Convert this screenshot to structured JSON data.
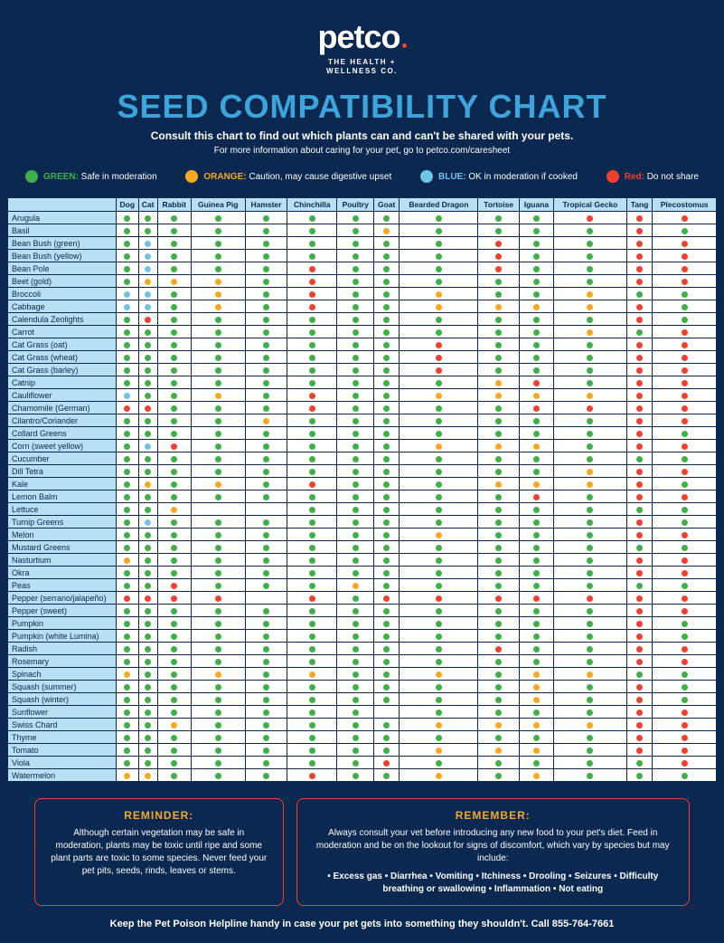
{
  "colors": {
    "g": "#3fb049",
    "o": "#f7a823",
    "b": "#6fc4e8",
    "r": "#ef4130"
  },
  "brand": {
    "name": "petco",
    "tagline1": "THE HEALTH +",
    "tagline2": "WELLNESS CO."
  },
  "header": {
    "title": "SEED COMPATIBILITY CHART",
    "subtitle": "Consult this chart to find out which plants can and can't be shared with your pets.",
    "subtitle2": "For more information about caring for your pet, go to petco.com/caresheet"
  },
  "legend": [
    {
      "key": "g",
      "label": "GREEN:",
      "text": "Safe in moderation"
    },
    {
      "key": "o",
      "label": "ORANGE:",
      "text": "Caution, may cause digestive upset"
    },
    {
      "key": "b",
      "label": "BLUE:",
      "text": "OK in moderation if cooked"
    },
    {
      "key": "r",
      "label": "Red:",
      "text": "Do not share"
    }
  ],
  "columns": [
    "Dog",
    "Cat",
    "Rabbit",
    "Guinea Pig",
    "Hamster",
    "Chinchilla",
    "Poultry",
    "Goat",
    "Bearded Dragon",
    "Tortoise",
    "Iguana",
    "Tropical Gecko",
    "Tang",
    "Plecostomus"
  ],
  "rows": [
    {
      "name": "Arugula",
      "v": [
        "g",
        "g",
        "g",
        "g",
        "g",
        "g",
        "g",
        "g",
        "g",
        "g",
        "g",
        "r",
        "r",
        "r"
      ]
    },
    {
      "name": "Basil",
      "v": [
        "g",
        "g",
        "g",
        "g",
        "g",
        "g",
        "g",
        "o",
        "g",
        "g",
        "g",
        "g",
        "r",
        "g"
      ]
    },
    {
      "name": "Bean Bush (green)",
      "v": [
        "g",
        "b",
        "g",
        "g",
        "g",
        "g",
        "g",
        "g",
        "g",
        "r",
        "g",
        "g",
        "r",
        "r"
      ]
    },
    {
      "name": "Bean Bush (yellow)",
      "v": [
        "g",
        "b",
        "g",
        "g",
        "g",
        "g",
        "g",
        "g",
        "g",
        "r",
        "g",
        "g",
        "r",
        "r"
      ]
    },
    {
      "name": "Bean Pole",
      "v": [
        "g",
        "b",
        "g",
        "g",
        "g",
        "r",
        "g",
        "g",
        "g",
        "r",
        "g",
        "g",
        "r",
        "r"
      ]
    },
    {
      "name": "Beet (gold)",
      "v": [
        "g",
        "o",
        "o",
        "o",
        "g",
        "r",
        "g",
        "g",
        "g",
        "g",
        "g",
        "g",
        "r",
        "r"
      ]
    },
    {
      "name": "Broccoli",
      "v": [
        "b",
        "b",
        "g",
        "o",
        "g",
        "r",
        "g",
        "g",
        "o",
        "g",
        "g",
        "o",
        "g",
        "g"
      ]
    },
    {
      "name": "Cabbage",
      "v": [
        "b",
        "b",
        "g",
        "o",
        "g",
        "r",
        "g",
        "g",
        "o",
        "o",
        "o",
        "o",
        "r",
        "g"
      ]
    },
    {
      "name": "Calendula Zeolights",
      "v": [
        "g",
        "r",
        "g",
        "g",
        "g",
        "g",
        "g",
        "g",
        "g",
        "g",
        "g",
        "g",
        "r",
        "g"
      ]
    },
    {
      "name": "Carrot",
      "v": [
        "g",
        "g",
        "g",
        "g",
        "g",
        "g",
        "g",
        "g",
        "g",
        "g",
        "g",
        "o",
        "g",
        "r"
      ]
    },
    {
      "name": "Cat Grass (oat)",
      "v": [
        "g",
        "g",
        "g",
        "g",
        "g",
        "g",
        "g",
        "g",
        "r",
        "g",
        "g",
        "g",
        "r",
        "r"
      ]
    },
    {
      "name": "Cat Grass (wheat)",
      "v": [
        "g",
        "g",
        "g",
        "g",
        "g",
        "g",
        "g",
        "g",
        "r",
        "g",
        "g",
        "g",
        "r",
        "r"
      ]
    },
    {
      "name": "Cat Grass (barley)",
      "v": [
        "g",
        "g",
        "g",
        "g",
        "g",
        "g",
        "g",
        "g",
        "r",
        "g",
        "g",
        "g",
        "r",
        "r"
      ]
    },
    {
      "name": "Catnip",
      "v": [
        "g",
        "g",
        "g",
        "g",
        "g",
        "g",
        "g",
        "g",
        "g",
        "o",
        "r",
        "g",
        "r",
        "r"
      ]
    },
    {
      "name": "Cauliflower",
      "v": [
        "b",
        "g",
        "g",
        "o",
        "g",
        "r",
        "g",
        "g",
        "o",
        "o",
        "o",
        "o",
        "r",
        "r"
      ]
    },
    {
      "name": "Chamomile (German)",
      "v": [
        "r",
        "r",
        "g",
        "g",
        "g",
        "r",
        "g",
        "g",
        "g",
        "g",
        "r",
        "r",
        "r",
        "r"
      ]
    },
    {
      "name": "Cilantro/Coriander",
      "v": [
        "g",
        "g",
        "g",
        "g",
        "o",
        "g",
        "g",
        "g",
        "g",
        "g",
        "g",
        "g",
        "r",
        "r"
      ]
    },
    {
      "name": "Collard Greens",
      "v": [
        "g",
        "g",
        "g",
        "g",
        "g",
        "g",
        "g",
        "g",
        "g",
        "g",
        "g",
        "g",
        "r",
        "g"
      ]
    },
    {
      "name": "Corn (sweet yellow)",
      "v": [
        "g",
        "b",
        "r",
        "g",
        "g",
        "g",
        "g",
        "g",
        "o",
        "o",
        "o",
        "g",
        "r",
        "r"
      ]
    },
    {
      "name": "Cucumber",
      "v": [
        "g",
        "g",
        "g",
        "g",
        "g",
        "g",
        "g",
        "g",
        "g",
        "g",
        "g",
        "g",
        "g",
        "g"
      ]
    },
    {
      "name": "Dill Tetra",
      "v": [
        "g",
        "g",
        "g",
        "g",
        "g",
        "g",
        "g",
        "g",
        "g",
        "g",
        "g",
        "o",
        "r",
        "r"
      ]
    },
    {
      "name": "Kale",
      "v": [
        "g",
        "o",
        "g",
        "o",
        "g",
        "r",
        "g",
        "g",
        "g",
        "o",
        "o",
        "o",
        "r",
        "g"
      ]
    },
    {
      "name": "Lemon Balm",
      "v": [
        "g",
        "g",
        "g",
        "g",
        "g",
        "g",
        "g",
        "g",
        "g",
        "g",
        "r",
        "g",
        "r",
        "r"
      ]
    },
    {
      "name": "Lettuce",
      "v": [
        "g",
        "g",
        "o",
        "",
        "",
        "g",
        "g",
        "g",
        "g",
        "g",
        "g",
        "g",
        "g",
        "g"
      ]
    },
    {
      "name": "Turnip Greens",
      "v": [
        "g",
        "b",
        "g",
        "g",
        "g",
        "g",
        "g",
        "g",
        "g",
        "g",
        "g",
        "g",
        "r",
        "g"
      ]
    },
    {
      "name": "Melon",
      "v": [
        "g",
        "g",
        "g",
        "g",
        "g",
        "g",
        "g",
        "g",
        "o",
        "g",
        "g",
        "g",
        "r",
        "r"
      ]
    },
    {
      "name": "Mustard Greens",
      "v": [
        "g",
        "g",
        "g",
        "g",
        "g",
        "g",
        "g",
        "g",
        "g",
        "g",
        "g",
        "g",
        "g",
        "g"
      ]
    },
    {
      "name": "Nasturtium",
      "v": [
        "o",
        "g",
        "g",
        "g",
        "g",
        "g",
        "g",
        "g",
        "g",
        "g",
        "g",
        "g",
        "r",
        "r"
      ]
    },
    {
      "name": "Okra",
      "v": [
        "g",
        "g",
        "g",
        "g",
        "g",
        "g",
        "g",
        "g",
        "g",
        "g",
        "g",
        "g",
        "r",
        "r"
      ]
    },
    {
      "name": "Peas",
      "v": [
        "g",
        "g",
        "r",
        "g",
        "g",
        "g",
        "o",
        "g",
        "g",
        "g",
        "g",
        "g",
        "g",
        "g"
      ]
    },
    {
      "name": "Pepper (serrano/jalapeño)",
      "v": [
        "r",
        "r",
        "r",
        "r",
        "",
        "r",
        "g",
        "r",
        "r",
        "r",
        "r",
        "r",
        "r",
        "r"
      ]
    },
    {
      "name": "Pepper (sweet)",
      "v": [
        "g",
        "g",
        "g",
        "g",
        "g",
        "g",
        "g",
        "g",
        "g",
        "g",
        "g",
        "g",
        "r",
        "r"
      ]
    },
    {
      "name": "Pumpkin",
      "v": [
        "g",
        "g",
        "g",
        "g",
        "g",
        "g",
        "g",
        "g",
        "g",
        "g",
        "g",
        "g",
        "r",
        "g"
      ]
    },
    {
      "name": "Pumpkin (white Lumina)",
      "v": [
        "g",
        "g",
        "g",
        "g",
        "g",
        "g",
        "g",
        "g",
        "g",
        "g",
        "g",
        "g",
        "r",
        "g"
      ]
    },
    {
      "name": "Radish",
      "v": [
        "g",
        "g",
        "g",
        "g",
        "g",
        "g",
        "g",
        "g",
        "g",
        "r",
        "g",
        "g",
        "r",
        "r"
      ]
    },
    {
      "name": "Rosemary",
      "v": [
        "g",
        "g",
        "g",
        "g",
        "g",
        "g",
        "g",
        "g",
        "g",
        "g",
        "g",
        "g",
        "r",
        "r"
      ]
    },
    {
      "name": "Spinach",
      "v": [
        "o",
        "g",
        "g",
        "o",
        "g",
        "o",
        "g",
        "g",
        "o",
        "g",
        "o",
        "o",
        "g",
        "g"
      ]
    },
    {
      "name": "Squash (summer)",
      "v": [
        "g",
        "g",
        "g",
        "g",
        "g",
        "g",
        "g",
        "g",
        "g",
        "g",
        "o",
        "g",
        "r",
        "g"
      ]
    },
    {
      "name": "Squash (winter)",
      "v": [
        "g",
        "g",
        "g",
        "g",
        "g",
        "g",
        "g",
        "g",
        "g",
        "g",
        "o",
        "g",
        "r",
        "g"
      ]
    },
    {
      "name": "Sunflower",
      "v": [
        "g",
        "g",
        "g",
        "g",
        "g",
        "g",
        "g",
        "",
        "g",
        "g",
        "g",
        "g",
        "r",
        "r"
      ]
    },
    {
      "name": "Swiss Chard",
      "v": [
        "g",
        "g",
        "o",
        "g",
        "g",
        "g",
        "g",
        "g",
        "o",
        "o",
        "o",
        "o",
        "r",
        "r"
      ]
    },
    {
      "name": "Thyme",
      "v": [
        "g",
        "g",
        "g",
        "g",
        "g",
        "g",
        "g",
        "g",
        "g",
        "g",
        "g",
        "g",
        "r",
        "r"
      ]
    },
    {
      "name": "Tomato",
      "v": [
        "g",
        "g",
        "g",
        "g",
        "g",
        "g",
        "g",
        "g",
        "o",
        "o",
        "o",
        "g",
        "r",
        "r"
      ]
    },
    {
      "name": "Viola",
      "v": [
        "g",
        "g",
        "g",
        "g",
        "g",
        "g",
        "g",
        "r",
        "g",
        "g",
        "g",
        "g",
        "g",
        "r"
      ]
    },
    {
      "name": "Watermelon",
      "v": [
        "o",
        "o",
        "g",
        "g",
        "g",
        "r",
        "g",
        "g",
        "o",
        "g",
        "o",
        "g",
        "g",
        "g"
      ]
    }
  ],
  "reminder": {
    "title": "REMINDER:",
    "text": "Although certain vegetation may be safe in moderation, plants may be toxic until ripe and some plant parts are toxic to some species. Never feed your pet pits, seeds, rinds, leaves or stems."
  },
  "remember": {
    "title": "REMEMBER:",
    "text": "Always consult your vet before introducing any new food to your pet's diet. Feed in moderation and be on the lookout for signs of discomfort, which vary by species but may include:",
    "symptoms": "• Excess gas • Diarrhea • Vomiting • Itchiness • Drooling • Seizures • Difficulty breathing or swallowing • Inflammation • Not eating"
  },
  "footer": {
    "text": "Keep the Pet Poison Helpline handy in case your pet gets into something they shouldn't.",
    "phone": "Call 855-764-7661"
  }
}
